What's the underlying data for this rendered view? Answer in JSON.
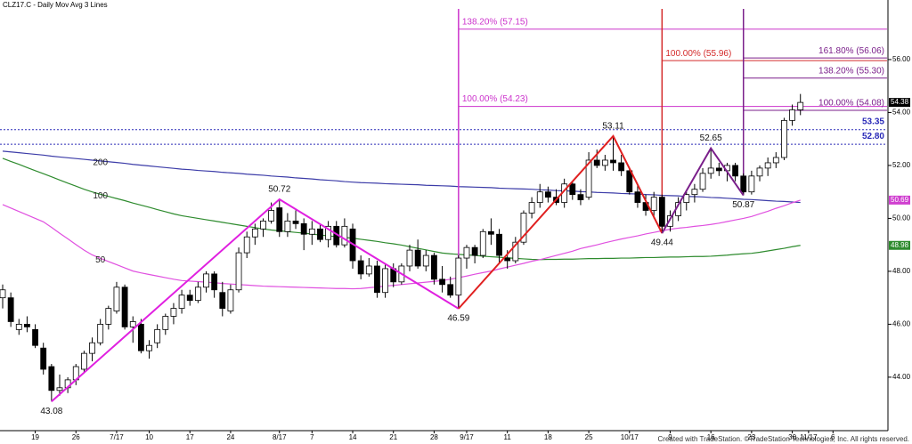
{
  "chart_data": {
    "type": "candlestick",
    "title": "CLZ17.C - Daily  Mov Avg 3 Lines",
    "footer": "Created with TradeStation. ©TradeStation Technologies, Inc. All rights reserved.",
    "categories": [
      null,
      null,
      null,
      null,
      "19",
      null,
      null,
      null,
      null,
      "26",
      null,
      null,
      null,
      null,
      "7/17",
      null,
      null,
      null,
      "10",
      null,
      null,
      null,
      null,
      "17",
      null,
      null,
      null,
      null,
      "24",
      null,
      null,
      null,
      null,
      null,
      "8/17",
      null,
      null,
      null,
      "7",
      null,
      null,
      null,
      null,
      "14",
      null,
      null,
      null,
      null,
      "21",
      null,
      null,
      null,
      null,
      "28",
      null,
      null,
      null,
      "9/17",
      null,
      null,
      null,
      null,
      "11",
      null,
      null,
      null,
      null,
      "18",
      null,
      null,
      null,
      null,
      "25",
      null,
      null,
      null,
      null,
      "10/17",
      null,
      null,
      null,
      null,
      "9",
      null,
      null,
      null,
      null,
      "16",
      null,
      null,
      null,
      null,
      "23",
      null,
      null,
      null,
      null,
      "30",
      null,
      "11/17",
      null,
      null,
      "6"
    ],
    "open": [
      47.0,
      47.0,
      45.8,
      46.0,
      45.8,
      45.1,
      44.4,
      43.5,
      43.6,
      43.9,
      44.3,
      44.9,
      45.3,
      46.0,
      46.5,
      47.4,
      45.9,
      46.0,
      45.0,
      45.3,
      45.8,
      46.3,
      46.6,
      47.1,
      46.9,
      47.4,
      47.9,
      47.2,
      46.5,
      47.3,
      48.7,
      49.3,
      49.6,
      49.9,
      50.4,
      49.5,
      49.9,
      49.8,
      49.4,
      49.6,
      49.2,
      49.7,
      49.0,
      49.6,
      48.4,
      47.9,
      48.2,
      47.2,
      48.1,
      47.6,
      48.2,
      48.8,
      48.2,
      48.6,
      47.7,
      47.5,
      47.1,
      48.5,
      48.9,
      48.6,
      49.5,
      49.4,
      48.5,
      48.4,
      49.1,
      50.2,
      50.6,
      51.0,
      50.8,
      50.6,
      51.3,
      50.9,
      50.8,
      52.2,
      52.0,
      52.2,
      52.1,
      51.8,
      51.0,
      50.6,
      50.3,
      50.8,
      49.7,
      50.1,
      50.6,
      50.9,
      51.1,
      51.7,
      51.9,
      51.8,
      52.0,
      51.6,
      51.0,
      51.6,
      51.9,
      52.1,
      52.3,
      53.7,
      54.1,
      null,
      null,
      null,
      null
    ],
    "high": [
      47.5,
      47.2,
      46.2,
      46.3,
      46.0,
      45.3,
      44.5,
      44.1,
      44.0,
      44.5,
      45.0,
      45.5,
      46.2,
      46.7,
      47.6,
      47.5,
      46.3,
      46.2,
      45.4,
      46.0,
      46.4,
      46.8,
      47.3,
      47.3,
      47.6,
      48.0,
      48.0,
      47.6,
      47.5,
      48.9,
      49.5,
      49.8,
      50.0,
      50.6,
      50.72,
      50.2,
      50.3,
      50.0,
      49.9,
      49.8,
      49.9,
      49.9,
      50.0,
      49.8,
      48.6,
      48.5,
      48.4,
      48.3,
      48.3,
      48.3,
      49.0,
      49.2,
      48.8,
      48.7,
      48.2,
      47.8,
      48.6,
      49.0,
      49.0,
      49.6,
      50.0,
      49.6,
      48.8,
      49.3,
      50.3,
      50.8,
      51.3,
      51.2,
      51.1,
      51.5,
      51.4,
      51.1,
      52.5,
      52.6,
      52.4,
      53.11,
      52.4,
      51.9,
      51.3,
      50.9,
      51.0,
      50.9,
      50.3,
      50.8,
      51.0,
      51.3,
      51.9,
      52.65,
      52.1,
      52.1,
      52.1,
      51.7,
      51.8,
      52.0,
      52.3,
      52.5,
      53.8,
      54.3,
      54.7,
      null,
      null,
      null,
      null
    ],
    "low": [
      46.6,
      45.9,
      45.6,
      45.7,
      45.1,
      44.1,
      43.08,
      43.3,
      43.4,
      43.7,
      44.2,
      44.6,
      45.2,
      45.8,
      46.4,
      45.8,
      45.3,
      44.9,
      44.7,
      45.1,
      45.6,
      46.0,
      46.4,
      46.7,
      46.8,
      47.2,
      47.0,
      46.3,
      46.4,
      47.2,
      48.5,
      49.0,
      49.3,
      49.8,
      49.3,
      49.3,
      49.6,
      48.8,
      49.0,
      49.1,
      48.9,
      48.9,
      48.9,
      48.1,
      47.7,
      47.8,
      47.0,
      47.0,
      47.4,
      47.5,
      48.0,
      48.1,
      48.0,
      47.5,
      47.2,
      47.0,
      46.59,
      48.1,
      48.3,
      48.5,
      49.0,
      48.3,
      48.1,
      48.3,
      49.0,
      50.0,
      50.4,
      50.6,
      50.5,
      50.4,
      50.7,
      50.5,
      50.7,
      51.9,
      51.8,
      51.8,
      51.6,
      50.9,
      50.4,
      50.1,
      50.0,
      49.44,
      49.5,
      49.9,
      50.3,
      50.6,
      51.0,
      51.5,
      51.6,
      51.4,
      51.4,
      50.87,
      50.9,
      51.4,
      51.6,
      51.9,
      52.2,
      53.5,
      53.9,
      null,
      null,
      null,
      null
    ],
    "close": [
      47.3,
      46.1,
      46.0,
      45.9,
      45.2,
      44.3,
      43.5,
      43.6,
      43.9,
      44.4,
      44.9,
      45.3,
      46.0,
      46.6,
      47.4,
      45.9,
      46.1,
      45.0,
      45.2,
      45.8,
      46.3,
      46.6,
      47.1,
      46.9,
      47.4,
      47.9,
      47.3,
      46.6,
      47.3,
      48.7,
      49.3,
      49.6,
      49.9,
      50.3,
      49.5,
      49.9,
      49.8,
      49.4,
      49.6,
      49.2,
      49.7,
      49.0,
      49.7,
      48.4,
      47.9,
      48.2,
      47.2,
      48.1,
      47.6,
      48.2,
      48.8,
      48.2,
      48.6,
      47.7,
      47.5,
      47.1,
      48.5,
      48.9,
      48.6,
      49.5,
      49.4,
      48.6,
      48.4,
      49.1,
      50.2,
      50.6,
      51.0,
      50.8,
      50.6,
      51.3,
      50.9,
      50.7,
      52.2,
      52.0,
      52.2,
      52.1,
      51.8,
      51.0,
      50.6,
      50.3,
      50.8,
      49.7,
      50.1,
      50.6,
      50.9,
      51.1,
      51.7,
      51.9,
      51.8,
      52.0,
      51.6,
      51.0,
      51.6,
      51.9,
      52.1,
      52.3,
      53.7,
      54.1,
      54.38,
      null,
      null,
      null,
      null
    ],
    "series": [
      {
        "name": "200",
        "color": "#3c3ca8",
        "values": [
          52.54,
          52.51,
          52.48,
          52.45,
          52.42,
          52.39,
          52.35,
          52.32,
          52.29,
          52.26,
          52.23,
          52.2,
          52.17,
          52.14,
          52.11,
          52.08,
          52.04,
          52.01,
          51.98,
          51.95,
          51.92,
          51.89,
          51.86,
          51.84,
          51.81,
          51.79,
          51.77,
          51.74,
          51.72,
          51.7,
          51.67,
          51.65,
          51.63,
          51.6,
          51.58,
          51.56,
          51.53,
          51.51,
          51.49,
          51.46,
          51.44,
          51.42,
          51.39,
          51.37,
          51.35,
          51.34,
          51.33,
          51.31,
          51.3,
          51.29,
          51.28,
          51.27,
          51.25,
          51.24,
          51.23,
          51.22,
          51.2,
          51.19,
          51.18,
          51.17,
          51.16,
          51.14,
          51.13,
          51.12,
          51.11,
          51.1,
          51.08,
          51.07,
          51.05,
          51.04,
          51.03,
          51.01,
          51.0,
          50.98,
          50.97,
          50.96,
          50.94,
          50.93,
          50.92,
          50.9,
          50.89,
          50.87,
          50.86,
          50.85,
          50.83,
          50.82,
          50.81,
          50.79,
          50.78,
          50.76,
          50.74,
          50.72,
          50.71,
          50.69,
          50.67,
          50.65,
          50.64,
          50.62,
          50.6,
          null,
          null,
          null,
          null
        ]
      },
      {
        "name": "100",
        "color": "#2e8b2e",
        "values": [
          52.27,
          52.15,
          52.04,
          51.92,
          51.8,
          51.69,
          51.57,
          51.45,
          51.33,
          51.22,
          51.1,
          51.0,
          50.91,
          50.83,
          50.75,
          50.67,
          50.58,
          50.5,
          50.42,
          50.33,
          50.25,
          50.17,
          50.1,
          50.05,
          50.0,
          49.95,
          49.9,
          49.85,
          49.8,
          49.75,
          49.7,
          49.65,
          49.6,
          49.56,
          49.53,
          49.5,
          49.47,
          49.44,
          49.41,
          49.37,
          49.34,
          49.31,
          49.28,
          49.25,
          49.21,
          49.17,
          49.13,
          49.08,
          49.04,
          48.99,
          48.93,
          48.87,
          48.81,
          48.75,
          48.69,
          48.66,
          48.64,
          48.62,
          48.6,
          48.57,
          48.55,
          48.53,
          48.51,
          48.49,
          48.47,
          48.45,
          48.44,
          48.45,
          48.45,
          48.46,
          48.46,
          48.47,
          48.48,
          48.48,
          48.49,
          48.49,
          48.5,
          48.5,
          48.51,
          48.52,
          48.52,
          48.53,
          48.54,
          48.54,
          48.55,
          48.56,
          48.56,
          48.57,
          48.59,
          48.61,
          48.64,
          48.66,
          48.68,
          48.72,
          48.77,
          48.82,
          48.87,
          48.93,
          48.98,
          null,
          null,
          null,
          null
        ]
      },
      {
        "name": "50",
        "color": "#e050e0",
        "values": [
          50.52,
          50.39,
          50.26,
          50.13,
          50.0,
          49.87,
          49.66,
          49.44,
          49.23,
          49.01,
          48.8,
          48.62,
          48.49,
          48.37,
          48.25,
          48.13,
          48.01,
          47.94,
          47.88,
          47.82,
          47.76,
          47.7,
          47.65,
          47.63,
          47.61,
          47.59,
          47.57,
          47.54,
          47.52,
          47.5,
          47.48,
          47.46,
          47.44,
          47.43,
          47.42,
          47.41,
          47.4,
          47.39,
          47.38,
          47.37,
          47.36,
          47.35,
          47.35,
          47.34,
          47.35,
          47.38,
          47.41,
          47.44,
          47.47,
          47.5,
          47.53,
          47.56,
          47.59,
          47.62,
          47.65,
          47.7,
          47.76,
          47.82,
          47.89,
          47.95,
          48.01,
          48.09,
          48.16,
          48.23,
          48.3,
          48.38,
          48.44,
          48.52,
          48.6,
          48.68,
          48.76,
          48.86,
          48.93,
          49.0,
          49.08,
          49.15,
          49.22,
          49.28,
          49.34,
          49.41,
          49.47,
          49.53,
          49.59,
          49.63,
          49.66,
          49.7,
          49.73,
          49.77,
          49.82,
          49.88,
          49.94,
          50.0,
          50.07,
          50.17,
          50.27,
          50.38,
          50.48,
          50.59,
          50.69,
          null,
          null,
          null,
          null
        ]
      }
    ],
    "ylim": [
      41.98,
      58.25
    ],
    "yticks": [
      {
        "value": 44,
        "label": "44.00"
      },
      {
        "value": 46,
        "label": "46.00"
      },
      {
        "value": 48,
        "label": "48.00"
      },
      {
        "value": 50,
        "label": "50.00"
      },
      {
        "value": 52,
        "label": "52.00"
      },
      {
        "value": 54,
        "label": "54.00"
      },
      {
        "value": 56,
        "label": "56.00"
      }
    ],
    "grid": false,
    "price_tags": [
      {
        "value": 54.38,
        "color": "#000000"
      },
      {
        "value": 50.69,
        "color": "#d040d0"
      },
      {
        "value": 48.98,
        "color": "#2e8b2e"
      }
    ],
    "levels": [
      {
        "value": 53.35,
        "label": "53.35"
      },
      {
        "value": 52.8,
        "label": "52.80"
      }
    ],
    "level_color": "#2a2ab8",
    "zigzags": [
      {
        "color": "#e020e0",
        "points": [
          {
            "index": 6,
            "value": 43.08
          },
          {
            "index": 34,
            "value": 50.72
          },
          {
            "index": 56,
            "value": 46.59
          }
        ]
      },
      {
        "color": "#e02020",
        "points": [
          {
            "index": 56,
            "value": 46.59
          },
          {
            "index": 75,
            "value": 53.11
          },
          {
            "index": 81,
            "value": 49.44
          }
        ]
      },
      {
        "color": "#7a1f8a",
        "points": [
          {
            "index": 81,
            "value": 49.44
          },
          {
            "index": 87,
            "value": 52.65
          },
          {
            "index": 91,
            "value": 50.87
          }
        ]
      }
    ],
    "fib_levels": [
      {
        "color": "#cc33cc",
        "anchor": 56,
        "levels": [
          {
            "value": 57.15,
            "label": "138.20% (57.15)"
          },
          {
            "value": 54.23,
            "label": "100.00% (54.23)"
          }
        ]
      },
      {
        "color": "#d42a2a",
        "anchor": 81,
        "levels": [
          {
            "value": 55.96,
            "label": "100.00% (55.96)"
          }
        ]
      },
      {
        "color": "#7a1f8a",
        "anchor": 91,
        "levels": [
          {
            "value": 56.06,
            "label": "161.80% (56.06)"
          },
          {
            "value": 55.3,
            "label": "138.20% (55.30)"
          },
          {
            "value": 54.08,
            "label": "100.00% (54.08)"
          }
        ]
      }
    ]
  }
}
